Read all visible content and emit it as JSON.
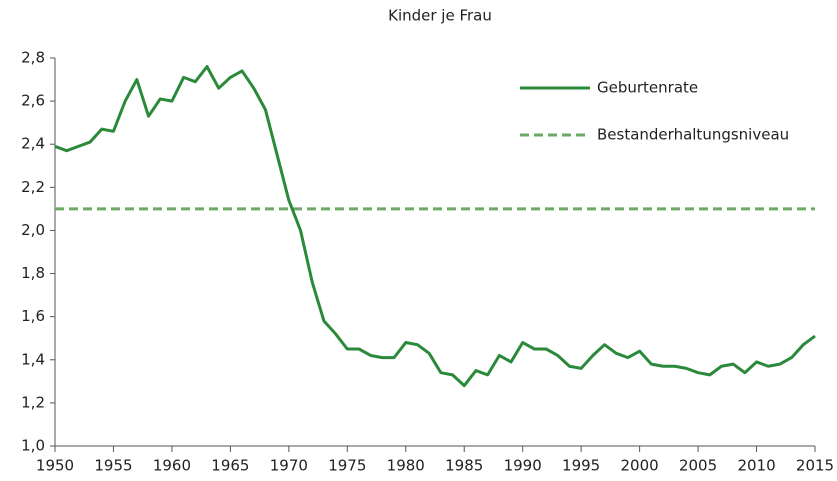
{
  "chart_data": {
    "type": "line",
    "title": "Kinder je Frau",
    "x": [
      1950,
      1951,
      1952,
      1953,
      1954,
      1955,
      1956,
      1957,
      1958,
      1959,
      1960,
      1961,
      1962,
      1963,
      1964,
      1965,
      1966,
      1967,
      1968,
      1969,
      1970,
      1971,
      1972,
      1973,
      1974,
      1975,
      1976,
      1977,
      1978,
      1979,
      1980,
      1981,
      1982,
      1983,
      1984,
      1985,
      1986,
      1987,
      1988,
      1989,
      1990,
      1991,
      1992,
      1993,
      1994,
      1995,
      1996,
      1997,
      1998,
      1999,
      2000,
      2001,
      2002,
      2003,
      2004,
      2005,
      2006,
      2007,
      2008,
      2009,
      2010,
      2011,
      2012,
      2013,
      2014,
      2015
    ],
    "series": [
      {
        "name": "Geburtenrate",
        "color": "#2a8a3a",
        "values": [
          2.39,
          2.37,
          2.39,
          2.41,
          2.47,
          2.46,
          2.6,
          2.7,
          2.53,
          2.61,
          2.6,
          2.71,
          2.69,
          2.76,
          2.66,
          2.71,
          2.74,
          2.66,
          2.56,
          2.35,
          2.14,
          2.0,
          1.76,
          1.58,
          1.52,
          1.45,
          1.45,
          1.42,
          1.41,
          1.41,
          1.48,
          1.47,
          1.43,
          1.34,
          1.33,
          1.28,
          1.35,
          1.33,
          1.42,
          1.39,
          1.48,
          1.45,
          1.45,
          1.42,
          1.37,
          1.36,
          1.42,
          1.47,
          1.43,
          1.41,
          1.44,
          1.38,
          1.37,
          1.37,
          1.36,
          1.34,
          1.33,
          1.37,
          1.38,
          1.34,
          1.39,
          1.37,
          1.38,
          1.41,
          1.47,
          1.51
        ]
      }
    ],
    "reference_line": {
      "name": "Bestanderhaltungsniveau",
      "value": 2.1,
      "color": "#6aaa64",
      "dashed": true
    },
    "xlim": [
      1950,
      2015
    ],
    "xticks": [
      1950,
      1955,
      1960,
      1965,
      1970,
      1975,
      1980,
      1985,
      1990,
      1995,
      2000,
      2005,
      2010,
      2015
    ],
    "ylim": [
      1.0,
      2.8
    ],
    "yticks": [
      {
        "value": 1.0,
        "label": "1,0"
      },
      {
        "value": 1.2,
        "label": "1,2"
      },
      {
        "value": 1.4,
        "label": "1,4"
      },
      {
        "value": 1.6,
        "label": "1,6"
      },
      {
        "value": 1.8,
        "label": "1,8"
      },
      {
        "value": 2.0,
        "label": "2,0"
      },
      {
        "value": 2.2,
        "label": "2,2"
      },
      {
        "value": 2.4,
        "label": "2,4"
      },
      {
        "value": 2.6,
        "label": "2,6"
      },
      {
        "value": 2.8,
        "label": "2,8"
      }
    ],
    "grid": false,
    "legend": "upper right"
  }
}
